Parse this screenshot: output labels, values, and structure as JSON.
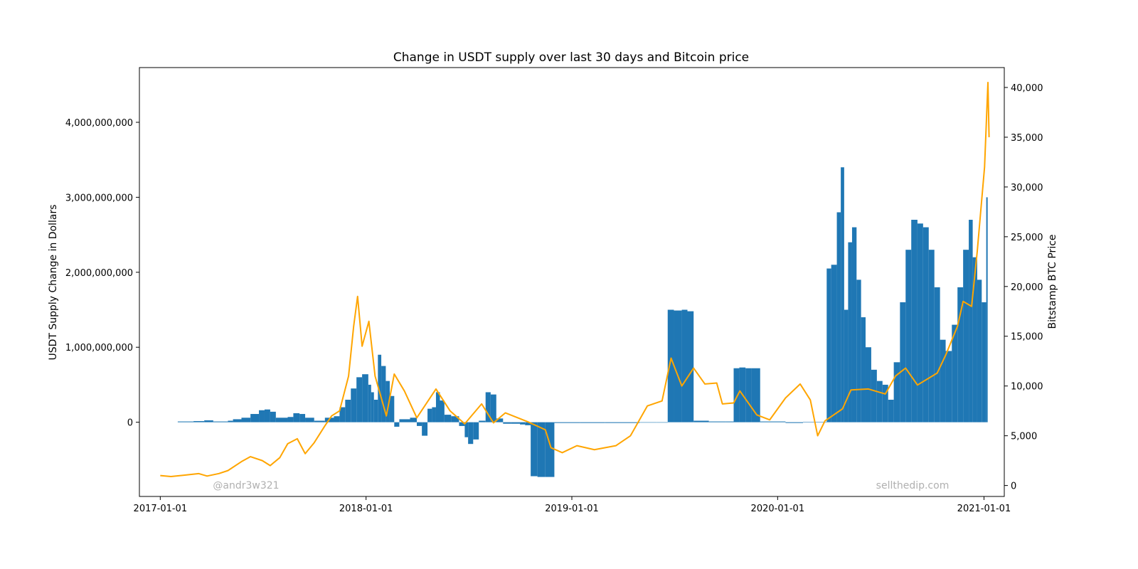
{
  "chart_data": {
    "type": "bar",
    "title": "Change in USDT supply over last 30 days and Bitcoin price",
    "xlabel": "",
    "ylabel": "USDT Supply Change in Dollars",
    "y2label": "Bitstamp BTC Price",
    "xlim": [
      "2016-11-25",
      "2021-02-06"
    ],
    "ylim": [
      -990000000,
      4730000000
    ],
    "y2lim": [
      -1100,
      42000
    ],
    "x_ticks": [
      {
        "date": "2017-01-01",
        "label": "2017-01-01"
      },
      {
        "date": "2018-01-01",
        "label": "2018-01-01"
      },
      {
        "date": "2019-01-01",
        "label": "2019-01-01"
      },
      {
        "date": "2020-01-01",
        "label": "2020-01-01"
      },
      {
        "date": "2021-01-01",
        "label": "2021-01-01"
      }
    ],
    "y_ticks": [
      {
        "value": 0,
        "label": "0"
      },
      {
        "value": 1000000000,
        "label": "1,000,000,000"
      },
      {
        "value": 2000000000,
        "label": "2,000,000,000"
      },
      {
        "value": 3000000000,
        "label": "3,000,000,000"
      },
      {
        "value": 4000000000,
        "label": "4,000,000,000"
      }
    ],
    "y2_ticks": [
      {
        "value": 0,
        "label": "0"
      },
      {
        "value": 5000,
        "label": "5,000"
      },
      {
        "value": 10000,
        "label": "10,000"
      },
      {
        "value": 15000,
        "label": "15,000"
      },
      {
        "value": 20000,
        "label": "20,000"
      },
      {
        "value": 25000,
        "label": "25,000"
      },
      {
        "value": 30000,
        "label": "30,000"
      },
      {
        "value": 35000,
        "label": "35,000"
      },
      {
        "value": 40000,
        "label": "40,000"
      }
    ],
    "series": [
      {
        "kind": "bar",
        "axis": "left",
        "points": [
          [
            "2017-02-01",
            10000000
          ],
          [
            "2017-03-01",
            15000000
          ],
          [
            "2017-03-20",
            25000000
          ],
          [
            "2017-04-05",
            10000000
          ],
          [
            "2017-05-01",
            20000000
          ],
          [
            "2017-05-10",
            40000000
          ],
          [
            "2017-05-25",
            60000000
          ],
          [
            "2017-06-10",
            110000000
          ],
          [
            "2017-06-25",
            160000000
          ],
          [
            "2017-07-05",
            170000000
          ],
          [
            "2017-07-15",
            140000000
          ],
          [
            "2017-07-25",
            60000000
          ],
          [
            "2017-08-15",
            70000000
          ],
          [
            "2017-08-25",
            120000000
          ],
          [
            "2017-09-05",
            110000000
          ],
          [
            "2017-09-15",
            60000000
          ],
          [
            "2017-10-01",
            20000000
          ],
          [
            "2017-10-20",
            60000000
          ],
          [
            "2017-11-05",
            80000000
          ],
          [
            "2017-11-15",
            200000000
          ],
          [
            "2017-11-25",
            300000000
          ],
          [
            "2017-12-05",
            450000000
          ],
          [
            "2017-12-15",
            600000000
          ],
          [
            "2017-12-25",
            640000000
          ],
          [
            "2018-01-05",
            500000000
          ],
          [
            "2018-01-10",
            400000000
          ],
          [
            "2018-01-15",
            300000000
          ],
          [
            "2018-01-22",
            900000000
          ],
          [
            "2018-01-28",
            750000000
          ],
          [
            "2018-02-05",
            550000000
          ],
          [
            "2018-02-12",
            350000000
          ],
          [
            "2018-02-20",
            -60000000
          ],
          [
            "2018-03-01",
            40000000
          ],
          [
            "2018-03-20",
            60000000
          ],
          [
            "2018-04-01",
            -50000000
          ],
          [
            "2018-04-10",
            -180000000
          ],
          [
            "2018-04-20",
            180000000
          ],
          [
            "2018-04-28",
            200000000
          ],
          [
            "2018-05-05",
            400000000
          ],
          [
            "2018-05-12",
            290000000
          ],
          [
            "2018-05-20",
            100000000
          ],
          [
            "2018-06-01",
            80000000
          ],
          [
            "2018-06-15",
            -50000000
          ],
          [
            "2018-06-25",
            -200000000
          ],
          [
            "2018-07-01",
            -290000000
          ],
          [
            "2018-07-10",
            -230000000
          ],
          [
            "2018-07-20",
            20000000
          ],
          [
            "2018-08-01",
            400000000
          ],
          [
            "2018-08-10",
            370000000
          ],
          [
            "2018-08-20",
            50000000
          ],
          [
            "2018-09-01",
            -20000000
          ],
          [
            "2018-09-15",
            -20000000
          ],
          [
            "2018-10-01",
            -30000000
          ],
          [
            "2018-10-10",
            -40000000
          ],
          [
            "2018-10-20",
            -720000000
          ],
          [
            "2018-11-01",
            -730000000
          ],
          [
            "2018-11-15",
            -730000000
          ],
          [
            "2018-12-01",
            -10000000
          ],
          [
            "2019-01-15",
            -10000000
          ],
          [
            "2019-03-01",
            -10000000
          ],
          [
            "2019-05-01",
            -5000000
          ],
          [
            "2019-06-01",
            -5000000
          ],
          [
            "2019-06-20",
            1500000000
          ],
          [
            "2019-07-01",
            1490000000
          ],
          [
            "2019-07-15",
            1500000000
          ],
          [
            "2019-07-25",
            1480000000
          ],
          [
            "2019-08-05",
            20000000
          ],
          [
            "2019-09-01",
            10000000
          ],
          [
            "2019-10-01",
            10000000
          ],
          [
            "2019-10-15",
            720000000
          ],
          [
            "2019-10-25",
            730000000
          ],
          [
            "2019-11-05",
            720000000
          ],
          [
            "2019-11-15",
            720000000
          ],
          [
            "2019-12-01",
            10000000
          ],
          [
            "2020-01-15",
            -10000000
          ],
          [
            "2020-02-15",
            5000000
          ],
          [
            "2020-03-28",
            2050000000
          ],
          [
            "2020-04-05",
            2100000000
          ],
          [
            "2020-04-15",
            2800000000
          ],
          [
            "2020-04-22",
            3400000000
          ],
          [
            "2020-04-28",
            1500000000
          ],
          [
            "2020-05-05",
            2400000000
          ],
          [
            "2020-05-12",
            2600000000
          ],
          [
            "2020-05-20",
            1900000000
          ],
          [
            "2020-05-28",
            1400000000
          ],
          [
            "2020-06-05",
            1000000000
          ],
          [
            "2020-06-15",
            700000000
          ],
          [
            "2020-06-25",
            550000000
          ],
          [
            "2020-07-05",
            500000000
          ],
          [
            "2020-07-15",
            300000000
          ],
          [
            "2020-07-25",
            800000000
          ],
          [
            "2020-08-05",
            1600000000
          ],
          [
            "2020-08-15",
            2300000000
          ],
          [
            "2020-08-25",
            2700000000
          ],
          [
            "2020-09-05",
            2650000000
          ],
          [
            "2020-09-15",
            2600000000
          ],
          [
            "2020-09-25",
            2300000000
          ],
          [
            "2020-10-05",
            1800000000
          ],
          [
            "2020-10-15",
            1100000000
          ],
          [
            "2020-10-25",
            950000000
          ],
          [
            "2020-11-05",
            1300000000
          ],
          [
            "2020-11-15",
            1800000000
          ],
          [
            "2020-11-25",
            2300000000
          ],
          [
            "2020-12-05",
            2700000000
          ],
          [
            "2020-12-12",
            2200000000
          ],
          [
            "2020-12-20",
            1900000000
          ],
          [
            "2020-12-28",
            1600000000
          ],
          [
            "2021-01-05",
            3000000000
          ]
        ]
      },
      {
        "kind": "line",
        "axis": "right",
        "points": [
          [
            "2017-01-01",
            1000
          ],
          [
            "2017-01-20",
            900
          ],
          [
            "2017-02-15",
            1050
          ],
          [
            "2017-03-10",
            1200
          ],
          [
            "2017-03-25",
            950
          ],
          [
            "2017-04-15",
            1200
          ],
          [
            "2017-05-01",
            1500
          ],
          [
            "2017-05-25",
            2400
          ],
          [
            "2017-06-10",
            2900
          ],
          [
            "2017-07-01",
            2500
          ],
          [
            "2017-07-15",
            2000
          ],
          [
            "2017-08-01",
            2800
          ],
          [
            "2017-08-15",
            4200
          ],
          [
            "2017-09-01",
            4700
          ],
          [
            "2017-09-15",
            3200
          ],
          [
            "2017-10-01",
            4300
          ],
          [
            "2017-10-20",
            6000
          ],
          [
            "2017-11-01",
            7000
          ],
          [
            "2017-11-15",
            7500
          ],
          [
            "2017-12-01",
            11000
          ],
          [
            "2017-12-10",
            16000
          ],
          [
            "2017-12-17",
            19000
          ],
          [
            "2017-12-25",
            14000
          ],
          [
            "2018-01-06",
            16500
          ],
          [
            "2018-01-17",
            11000
          ],
          [
            "2018-02-06",
            7000
          ],
          [
            "2018-02-20",
            11200
          ],
          [
            "2018-03-10",
            9500
          ],
          [
            "2018-04-01",
            6800
          ],
          [
            "2018-05-05",
            9700
          ],
          [
            "2018-05-30",
            7500
          ],
          [
            "2018-06-25",
            6200
          ],
          [
            "2018-07-25",
            8200
          ],
          [
            "2018-08-15",
            6300
          ],
          [
            "2018-09-05",
            7300
          ],
          [
            "2018-10-15",
            6400
          ],
          [
            "2018-11-15",
            5600
          ],
          [
            "2018-11-25",
            3800
          ],
          [
            "2018-12-15",
            3300
          ],
          [
            "2019-01-10",
            4000
          ],
          [
            "2019-02-10",
            3600
          ],
          [
            "2019-03-20",
            4000
          ],
          [
            "2019-04-15",
            5000
          ],
          [
            "2019-05-15",
            8000
          ],
          [
            "2019-06-10",
            8500
          ],
          [
            "2019-06-26",
            12800
          ],
          [
            "2019-07-15",
            10000
          ],
          [
            "2019-08-05",
            11800
          ],
          [
            "2019-08-25",
            10200
          ],
          [
            "2019-09-15",
            10300
          ],
          [
            "2019-09-25",
            8200
          ],
          [
            "2019-10-15",
            8300
          ],
          [
            "2019-10-26",
            9500
          ],
          [
            "2019-11-25",
            7100
          ],
          [
            "2019-12-18",
            6600
          ],
          [
            "2020-01-15",
            8800
          ],
          [
            "2020-02-10",
            10200
          ],
          [
            "2020-02-28",
            8600
          ],
          [
            "2020-03-12",
            5000
          ],
          [
            "2020-03-25",
            6500
          ],
          [
            "2020-04-25",
            7700
          ],
          [
            "2020-05-10",
            9600
          ],
          [
            "2020-06-10",
            9700
          ],
          [
            "2020-07-10",
            9200
          ],
          [
            "2020-07-28",
            11000
          ],
          [
            "2020-08-15",
            11800
          ],
          [
            "2020-09-05",
            10100
          ],
          [
            "2020-10-10",
            11300
          ],
          [
            "2020-10-25",
            13100
          ],
          [
            "2020-11-15",
            16000
          ],
          [
            "2020-11-25",
            18500
          ],
          [
            "2020-12-10",
            18000
          ],
          [
            "2020-12-20",
            23500
          ],
          [
            "2021-01-02",
            32000
          ],
          [
            "2021-01-08",
            40500
          ],
          [
            "2021-01-10",
            35000
          ]
        ]
      }
    ]
  },
  "watermarks": {
    "left": "@andr3w321",
    "right": "sellthedip.com"
  },
  "colors": {
    "bars": "#1f77b4",
    "line": "#ffa500",
    "watermark": "#b0b0b0",
    "axes": "#000000"
  }
}
